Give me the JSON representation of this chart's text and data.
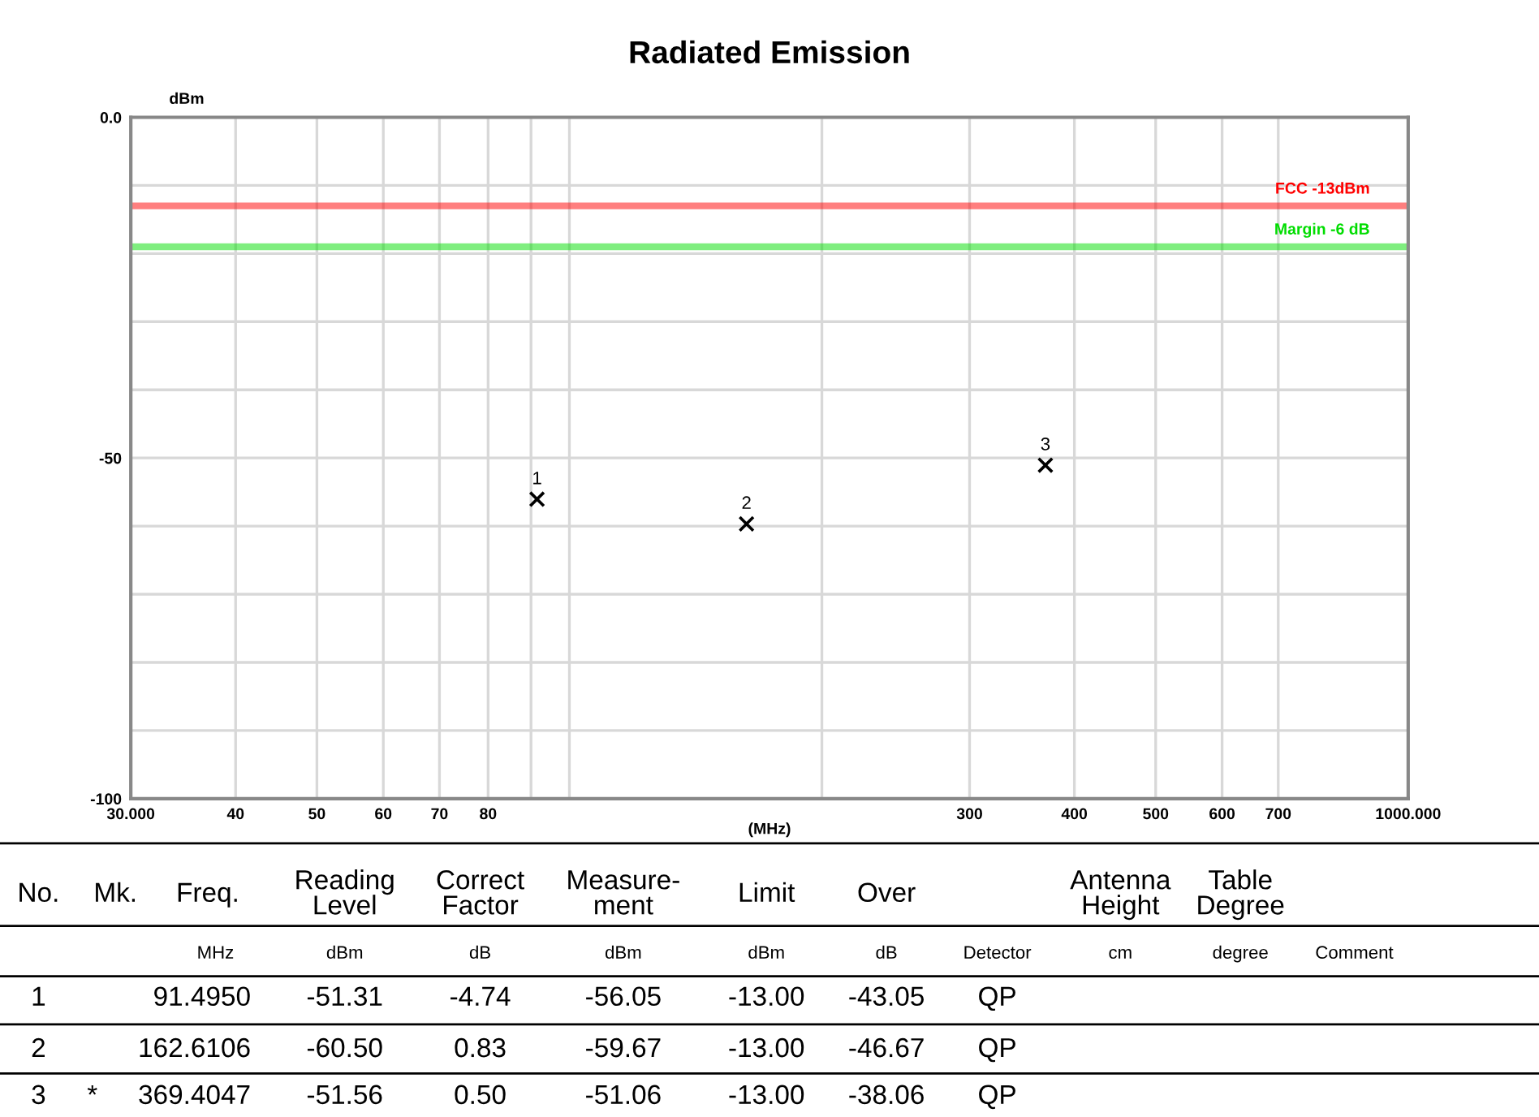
{
  "chart_data": {
    "type": "scatter",
    "title": "Radiated Emission",
    "xlabel": "(MHz)",
    "ylabel": "dBm",
    "x": [
      91.495,
      162.6106,
      369.4047
    ],
    "series": [
      {
        "color": "#000000",
        "values": [
          -56.05,
          -59.67,
          -51.06
        ]
      }
    ],
    "marker": "cross",
    "log": "x",
    "grid": true,
    "xlim": [
      30,
      1000
    ],
    "ylim": [
      -100,
      0
    ],
    "xticks": [
      {
        "value": 30,
        "label": "30.000"
      },
      40,
      50,
      60,
      70,
      80,
      {
        "value": 90,
        "label": null
      },
      {
        "value": 100,
        "label": null
      },
      {
        "value": 200,
        "label": null
      },
      300,
      400,
      500,
      600,
      700,
      {
        "value": 1000,
        "label": "1000.000"
      }
    ],
    "yticks": [
      {
        "value": -100,
        "label": "-100"
      },
      {
        "value": -90,
        "label": null
      },
      {
        "value": -80,
        "label": null
      },
      {
        "value": -70,
        "label": null
      },
      {
        "value": -60,
        "label": null
      },
      {
        "value": -50,
        "label": "-50"
      },
      {
        "value": -40,
        "label": null
      },
      {
        "value": -30,
        "label": null
      },
      {
        "value": -20,
        "label": null
      },
      {
        "value": -10,
        "label": null
      },
      {
        "value": 0,
        "label": "0.0"
      }
    ],
    "ref_lines": [
      {
        "axis": "y",
        "value": -13,
        "label": "FCC -13dBm",
        "color": "#ff0000"
      },
      {
        "axis": "y",
        "value": -19,
        "label": "Margin -6 dB",
        "color": "#00dd00"
      }
    ],
    "annotations": [
      {
        "text": "1",
        "x": 91.495,
        "y": -56.05
      },
      {
        "text": "2",
        "x": 162.6106,
        "y": -59.67
      },
      {
        "text": "3",
        "x": 369.4047,
        "y": -51.06
      },
      "No.",
      "Mk.",
      "Freq.",
      "Reading\nLevel",
      "Correct\nFactor",
      "Measure-\nment",
      "Limit",
      "Over",
      "Antenna\nHeight",
      "Table\nDegree",
      "MHz",
      "dBm",
      "dB",
      "dBm",
      "dBm",
      "dB",
      "Detector",
      "cm",
      "degree",
      "Comment",
      "1",
      "91.4950",
      "-51.31",
      "-4.74",
      "-56.05",
      "-13.00",
      "-43.05",
      "QP",
      "2",
      "162.6106",
      "-60.50",
      "0.83",
      "-59.67",
      "-13.00",
      "-46.67",
      "QP",
      "3",
      "*",
      "369.4047",
      "-51.56",
      "0.50",
      "-51.06",
      "-13.00",
      "-38.06",
      "QP"
    ]
  }
}
